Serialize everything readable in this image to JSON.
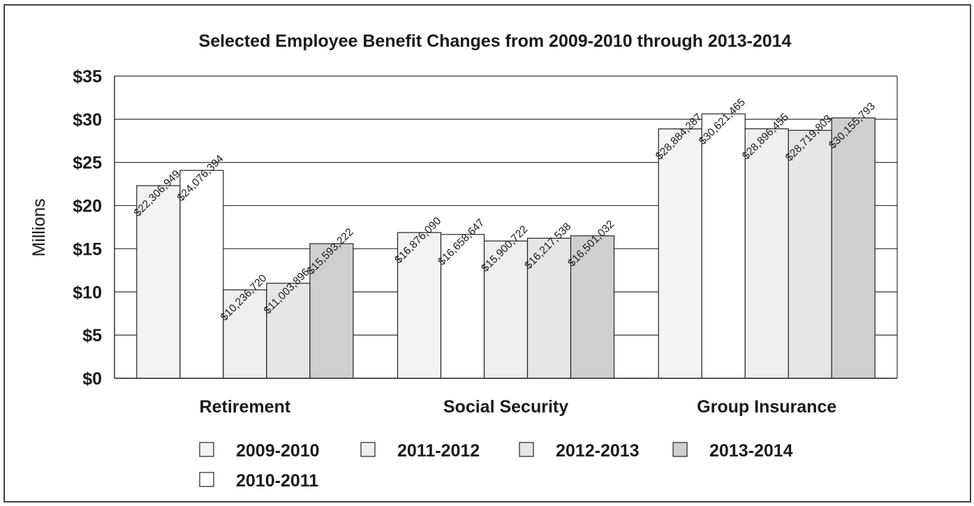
{
  "chart_data": {
    "type": "bar",
    "title": "Selected Employee Benefit Changes from 2009-2010 through 2013-2014",
    "ylabel": "Millions",
    "xlabel": "",
    "ylim": [
      0,
      35
    ],
    "yticks": [
      0,
      5,
      10,
      15,
      20,
      25,
      30,
      35
    ],
    "ytick_labels": [
      "$0",
      "$5",
      "$10",
      "$15",
      "$20",
      "$25",
      "$30",
      "$35"
    ],
    "grid": true,
    "legend_position": "bottom",
    "categories": [
      "Retirement",
      "Social Security",
      "Group Insurance"
    ],
    "series": [
      {
        "name": "2009-2010",
        "color": "#f3f3f3",
        "values": [
          22.306949,
          16.87609,
          28.884287
        ],
        "labels": [
          "$22,306,949",
          "$16,876,090",
          "$28,884,287"
        ]
      },
      {
        "name": "2010-2011",
        "color": "#ffffff",
        "values": [
          24.076394,
          16.658647,
          30.621465
        ],
        "labels": [
          "$24,076,394",
          "$16,658,647",
          "$30,621,465"
        ]
      },
      {
        "name": "2011-2012",
        "color": "#efefef",
        "values": [
          10.23672,
          15.900722,
          28.896455
        ],
        "labels": [
          "$10,236,720",
          "$15,900,722",
          "$28,896,455"
        ]
      },
      {
        "name": "2012-2013",
        "color": "#e6e6e6",
        "values": [
          11.003896,
          16.217538,
          28.719803
        ],
        "labels": [
          "$11,003,896",
          "$16,217,538",
          "$28,719,803"
        ]
      },
      {
        "name": "2013-2014",
        "color": "#cfcfcf",
        "values": [
          15.593222,
          16.501032,
          30.155793
        ],
        "labels": [
          "$15,593,222",
          "$16,501,032",
          "$30,155,793"
        ]
      }
    ]
  }
}
